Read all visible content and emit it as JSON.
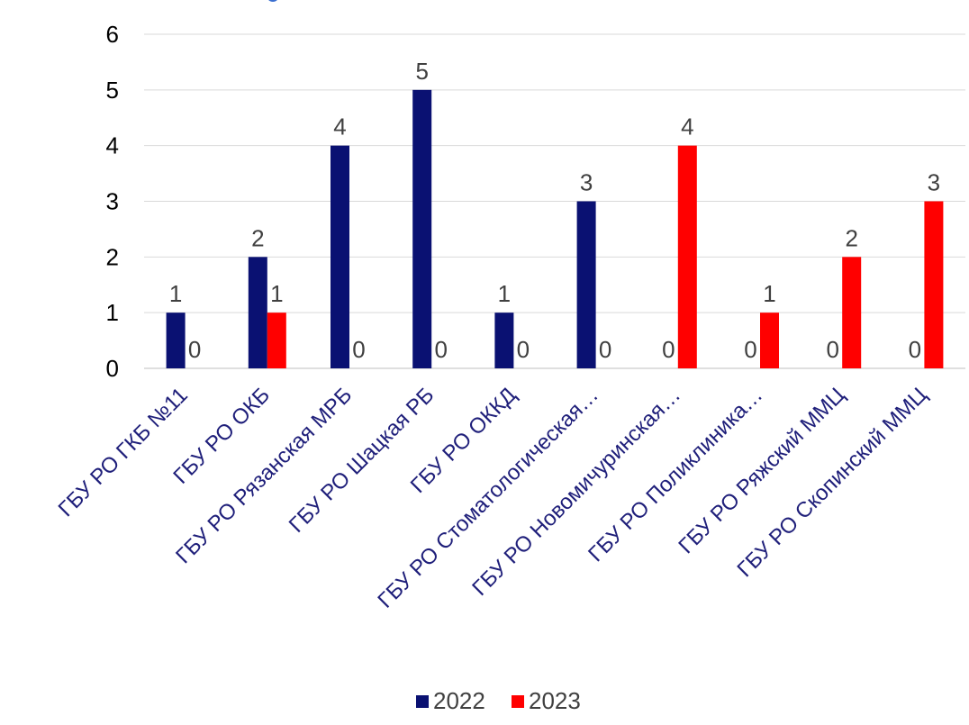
{
  "chart_data": {
    "type": "bar",
    "categories": [
      "ГБУ РО ГКБ №11",
      "ГБУ РО ОКБ",
      "ГБУ РО Рязанская МРБ",
      "ГБУ РО Шацкая РБ",
      "ГБУ РО ОККД",
      "ГБУ РО Стоматологическая…",
      "ГБУ РО Новомичуринская…",
      "ГБУ РО Поликлиника…",
      "ГБУ РО Ряжский ММЦ",
      "ГБУ РО Скопинский ММЦ"
    ],
    "series": [
      {
        "name": "2022",
        "color": "#0a1172",
        "values": [
          1,
          2,
          4,
          5,
          1,
          3,
          0,
          0,
          0,
          0
        ]
      },
      {
        "name": "2023",
        "color": "#ff0000",
        "values": [
          0,
          1,
          0,
          0,
          0,
          0,
          4,
          1,
          2,
          3
        ]
      }
    ],
    "ylim": [
      0,
      6
    ],
    "yticks": [
      0,
      1,
      2,
      3,
      4,
      5,
      6
    ],
    "grid": true,
    "legend_position": "bottom",
    "data_labels": true
  }
}
